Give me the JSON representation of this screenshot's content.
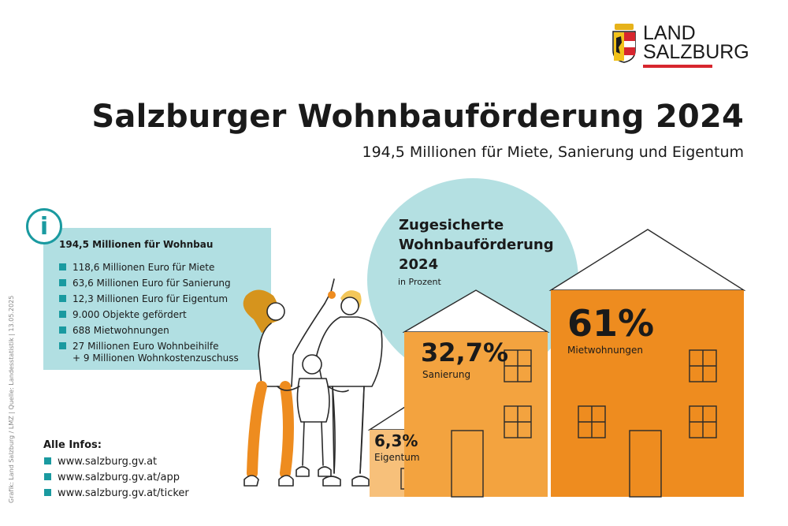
{
  "logo": {
    "line1": "LAND",
    "line2": "SALZBURG"
  },
  "header": {
    "title": "Salzburger Wohnbauförderung 2024",
    "subtitle": "194,5 Millionen für Miete, Sanierung und Eigentum"
  },
  "info": {
    "icon_glyph": "i",
    "heading": "194,5 Millionen für Wohnbau",
    "items": [
      "118,6 Millionen Euro für Miete",
      "63,6 Millionen Euro für Sanierung",
      "12,3 Millionen Euro für Eigentum",
      "9.000 Objekte gefördert",
      "688 Mietwohnungen",
      "27 Millionen Euro Wohnbeihilfe",
      "+ 9 Millionen Wohnkostenzuschuss"
    ]
  },
  "credit": "Grafik: Land Salzburg / LMZ  |  Quelle: Landesstatistik  |  13.05.2025",
  "links": {
    "heading": "Alle Infos:",
    "items": [
      "www.salzburg.gv.at",
      "www.salzburg.gv.at/app",
      "www.salzburg.gv.at/ticker"
    ]
  },
  "bubble": {
    "title_lines": [
      "Zugesicherte",
      "Wohnbauförderung",
      "2024"
    ],
    "subtitle": "in Prozent"
  },
  "chart_data": {
    "type": "bar",
    "categories": [
      "Eigentum",
      "Sanierung",
      "Mietwohnungen"
    ],
    "values": [
      6.3,
      32.7,
      61
    ],
    "value_labels": [
      "6,3%",
      "32,7%",
      "61%"
    ],
    "title": "Zugesicherte Wohnbauförderung 2024",
    "ylabel": "in Prozent"
  },
  "colors": {
    "teal": "#1a9aa0",
    "light_teal": "#b1dfe2",
    "orange_dark": "#ee8c1f",
    "orange_mid": "#f3a33f",
    "orange_light": "#f7c07a",
    "red": "#d7262e"
  }
}
